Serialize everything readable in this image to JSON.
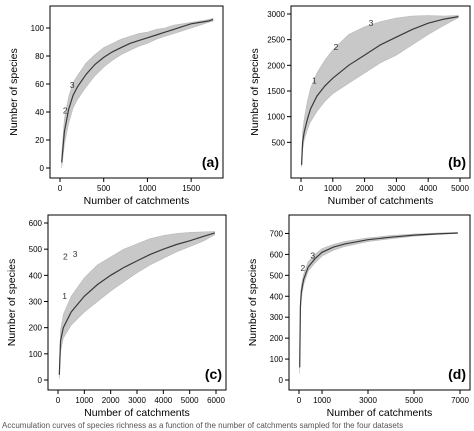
{
  "caption": "Accumulation curves of species richness as a function of the number of catchments sampled for the four datasets",
  "chart_data": [
    {
      "type": "line",
      "panel_label": "(a)",
      "xlabel": "Number of catchments",
      "ylabel": "Number of species",
      "xlim": [
        0,
        1750
      ],
      "ylim": [
        0,
        110
      ],
      "xticks": [
        0,
        500,
        1000,
        1500
      ],
      "yticks": [
        0,
        20,
        40,
        60,
        80,
        100
      ],
      "grid": false,
      "series": [
        {
          "style": "line",
          "points": [
            [
              20,
              4
            ],
            [
              50,
              26
            ],
            [
              100,
              42
            ],
            [
              150,
              52
            ],
            [
              200,
              58
            ],
            [
              300,
              67
            ],
            [
              400,
              74
            ],
            [
              500,
              79
            ],
            [
              600,
              83
            ],
            [
              700,
              86
            ],
            [
              800,
              89
            ],
            [
              900,
              91
            ],
            [
              1000,
              93
            ],
            [
              1100,
              95
            ],
            [
              1200,
              97
            ],
            [
              1300,
              99
            ],
            [
              1400,
              101
            ],
            [
              1500,
              103
            ],
            [
              1600,
              104
            ],
            [
              1700,
              105
            ],
            [
              1750,
              106
            ]
          ]
        },
        {
          "style": "band",
          "points": [
            [
              20,
              0,
              10
            ],
            [
              50,
              17,
              35
            ],
            [
              100,
              32,
              51
            ],
            [
              150,
              43,
              61
            ],
            [
              200,
              49,
              66
            ],
            [
              300,
              58,
              75
            ],
            [
              400,
              66,
              81
            ],
            [
              500,
              72,
              86
            ],
            [
              600,
              77,
              89
            ],
            [
              700,
              81,
              92
            ],
            [
              800,
              84,
              94
            ],
            [
              900,
              87,
              96
            ],
            [
              1000,
              89,
              97
            ],
            [
              1100,
              92,
              99
            ],
            [
              1200,
              94,
              100
            ],
            [
              1300,
              96,
              102
            ],
            [
              1400,
              98,
              103
            ],
            [
              1500,
              100,
              104
            ],
            [
              1600,
              102,
              105
            ],
            [
              1700,
              104,
              106
            ],
            [
              1750,
              105,
              107
            ]
          ]
        }
      ],
      "annotations": [
        {
          "text": "2",
          "x": 60,
          "y": 39
        },
        {
          "text": "3",
          "x": 140,
          "y": 57
        }
      ]
    },
    {
      "type": "line",
      "panel_label": "(b)",
      "xlabel": "Number of catchments",
      "ylabel": "Number of species",
      "xlim": [
        0,
        5000
      ],
      "ylim": [
        0,
        3000
      ],
      "xticks": [
        0,
        1000,
        2000,
        3000,
        4000,
        5000
      ],
      "yticks": [
        500,
        1000,
        1500,
        2000,
        2500,
        3000
      ],
      "grid": false,
      "series": [
        {
          "style": "line",
          "points": [
            [
              20,
              60
            ],
            [
              50,
              500
            ],
            [
              100,
              700
            ],
            [
              200,
              950
            ],
            [
              300,
              1150
            ],
            [
              500,
              1400
            ],
            [
              750,
              1600
            ],
            [
              1000,
              1750
            ],
            [
              1500,
              2000
            ],
            [
              2000,
              2200
            ],
            [
              2500,
              2400
            ],
            [
              3000,
              2550
            ],
            [
              3500,
              2700
            ],
            [
              4000,
              2820
            ],
            [
              4500,
              2900
            ],
            [
              4950,
              2950
            ]
          ]
        },
        {
          "style": "band",
          "points": [
            [
              20,
              20,
              200
            ],
            [
              50,
              350,
              700
            ],
            [
              100,
              550,
              950
            ],
            [
              200,
              750,
              1300
            ],
            [
              300,
              900,
              1550
            ],
            [
              500,
              1100,
              1850
            ],
            [
              750,
              1300,
              2100
            ],
            [
              1000,
              1450,
              2300
            ],
            [
              1500,
              1650,
              2600
            ],
            [
              2000,
              1850,
              2750
            ],
            [
              2500,
              2050,
              2850
            ],
            [
              3000,
              2200,
              2920
            ],
            [
              3500,
              2400,
              2960
            ],
            [
              4000,
              2600,
              2970
            ],
            [
              4500,
              2780,
              2960
            ],
            [
              4950,
              2930,
              2970
            ]
          ]
        }
      ],
      "annotations": [
        {
          "text": "1",
          "x": 420,
          "y": 1650
        },
        {
          "text": "2",
          "x": 1100,
          "y": 2300
        },
        {
          "text": "3",
          "x": 2200,
          "y": 2770
        }
      ]
    },
    {
      "type": "line",
      "panel_label": "(c)",
      "xlabel": "Number of catchments",
      "ylabel": "Number of species",
      "xlim": [
        0,
        6000
      ],
      "ylim": [
        0,
        600
      ],
      "xticks": [
        0,
        1000,
        2000,
        3000,
        4000,
        5000,
        6000
      ],
      "yticks": [
        0,
        100,
        200,
        300,
        400,
        500,
        600
      ],
      "grid": false,
      "series": [
        {
          "style": "line",
          "points": [
            [
              50,
              20
            ],
            [
              100,
              150
            ],
            [
              200,
              200
            ],
            [
              500,
              260
            ],
            [
              1000,
              320
            ],
            [
              1500,
              365
            ],
            [
              2000,
              400
            ],
            [
              2500,
              430
            ],
            [
              3000,
              455
            ],
            [
              3500,
              480
            ],
            [
              4000,
              500
            ],
            [
              4500,
              518
            ],
            [
              5000,
              532
            ],
            [
              5500,
              548
            ],
            [
              5950,
              562
            ]
          ]
        },
        {
          "style": "band",
          "points": [
            [
              50,
              5,
              60
            ],
            [
              100,
              110,
              190
            ],
            [
              200,
              160,
              250
            ],
            [
              500,
              210,
              320
            ],
            [
              1000,
              260,
              390
            ],
            [
              1500,
              300,
              440
            ],
            [
              2000,
              340,
              470
            ],
            [
              2500,
              375,
              500
            ],
            [
              3000,
              410,
              520
            ],
            [
              3500,
              440,
              540
            ],
            [
              4000,
              465,
              552
            ],
            [
              4500,
              490,
              560
            ],
            [
              5000,
              510,
              564
            ],
            [
              5500,
              530,
              566
            ],
            [
              5950,
              555,
              567
            ]
          ]
        }
      ],
      "annotations": [
        {
          "text": "1",
          "x": 250,
          "y": 310
        },
        {
          "text": "2",
          "x": 280,
          "y": 460
        },
        {
          "text": "3",
          "x": 650,
          "y": 470
        }
      ]
    },
    {
      "type": "line",
      "panel_label": "(d)",
      "xlabel": "Number of catchments",
      "ylabel": "Number of species",
      "xlim": [
        0,
        7000
      ],
      "ylim": [
        0,
        750
      ],
      "xticks": [
        0,
        1000,
        3000,
        5000,
        7000
      ],
      "yticks": [
        0,
        100,
        200,
        300,
        400,
        500,
        600,
        700
      ],
      "grid": false,
      "series": [
        {
          "style": "line",
          "points": [
            [
              30,
              60
            ],
            [
              60,
              350
            ],
            [
              100,
              420
            ],
            [
              200,
              480
            ],
            [
              400,
              540
            ],
            [
              700,
              580
            ],
            [
              1000,
              610
            ],
            [
              1500,
              635
            ],
            [
              2000,
              650
            ],
            [
              3000,
              670
            ],
            [
              4000,
              682
            ],
            [
              5000,
              692
            ],
            [
              6000,
              698
            ],
            [
              6900,
              702
            ]
          ]
        },
        {
          "style": "band",
          "points": [
            [
              30,
              30,
              120
            ],
            [
              60,
              320,
              380
            ],
            [
              100,
              390,
              450
            ],
            [
              200,
              455,
              505
            ],
            [
              400,
              520,
              565
            ],
            [
              700,
              560,
              600
            ],
            [
              1000,
              592,
              627
            ],
            [
              1500,
              620,
              648
            ],
            [
              2000,
              638,
              662
            ],
            [
              3000,
              661,
              679
            ],
            [
              4000,
              675,
              690
            ],
            [
              5000,
              687,
              697
            ],
            [
              6000,
              695,
              702
            ],
            [
              6900,
              700,
              704
            ]
          ]
        }
      ],
      "annotations": [
        {
          "text": "2",
          "x": 170,
          "y": 520
        },
        {
          "text": "3",
          "x": 600,
          "y": 580
        }
      ]
    }
  ]
}
